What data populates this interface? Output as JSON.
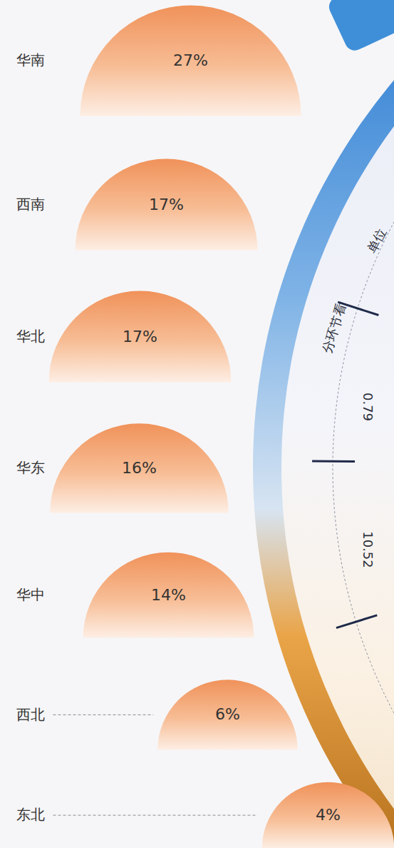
{
  "chart_data": {
    "type": "semicircle",
    "categories": [
      "华南",
      "西南",
      "华北",
      "华东",
      "华中",
      "西北",
      "东北"
    ],
    "values": [
      27,
      17,
      17,
      16,
      14,
      6,
      4
    ],
    "value_labels": [
      "27%",
      "17%",
      "17%",
      "16%",
      "14%",
      "6%",
      "4%"
    ],
    "data_labels": true,
    "color": "#f0925a",
    "tick_labels": false,
    "annotations": [
      "分环节看",
      "单位",
      "0.79",
      "10.52"
    ]
  }
}
